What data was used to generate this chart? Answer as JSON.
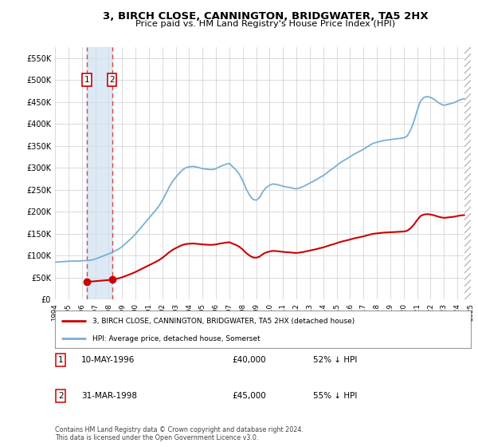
{
  "title": "3, BIRCH CLOSE, CANNINGTON, BRIDGWATER, TA5 2HX",
  "subtitle": "Price paid vs. HM Land Registry's House Price Index (HPI)",
  "hpi_x": [
    1994.0,
    1994.25,
    1994.5,
    1994.75,
    1995.0,
    1995.25,
    1995.5,
    1995.75,
    1996.0,
    1996.25,
    1996.5,
    1996.75,
    1997.0,
    1997.25,
    1997.5,
    1997.75,
    1998.0,
    1998.25,
    1998.5,
    1998.75,
    1999.0,
    1999.25,
    1999.5,
    1999.75,
    2000.0,
    2000.25,
    2000.5,
    2000.75,
    2001.0,
    2001.25,
    2001.5,
    2001.75,
    2002.0,
    2002.25,
    2002.5,
    2002.75,
    2003.0,
    2003.25,
    2003.5,
    2003.75,
    2004.0,
    2004.25,
    2004.5,
    2004.75,
    2005.0,
    2005.25,
    2005.5,
    2005.75,
    2006.0,
    2006.25,
    2006.5,
    2006.75,
    2007.0,
    2007.25,
    2007.5,
    2007.75,
    2008.0,
    2008.25,
    2008.5,
    2008.75,
    2009.0,
    2009.25,
    2009.5,
    2009.75,
    2010.0,
    2010.25,
    2010.5,
    2010.75,
    2011.0,
    2011.25,
    2011.5,
    2011.75,
    2012.0,
    2012.25,
    2012.5,
    2012.75,
    2013.0,
    2013.25,
    2013.5,
    2013.75,
    2014.0,
    2014.25,
    2014.5,
    2014.75,
    2015.0,
    2015.25,
    2015.5,
    2015.75,
    2016.0,
    2016.25,
    2016.5,
    2016.75,
    2017.0,
    2017.25,
    2017.5,
    2017.75,
    2018.0,
    2018.25,
    2018.5,
    2018.75,
    2019.0,
    2019.25,
    2019.5,
    2019.75,
    2020.0,
    2020.25,
    2020.5,
    2020.75,
    2021.0,
    2021.25,
    2021.5,
    2021.75,
    2022.0,
    2022.25,
    2022.5,
    2022.75,
    2023.0,
    2023.25,
    2023.5,
    2023.75,
    2024.0,
    2024.25,
    2024.5
  ],
  "hpi_y": [
    85000,
    85500,
    86000,
    86500,
    87000,
    87500,
    87500,
    87500,
    88000,
    88500,
    89000,
    90000,
    92000,
    95000,
    98000,
    101000,
    104000,
    107000,
    111000,
    115000,
    120000,
    127000,
    134000,
    141000,
    149000,
    158000,
    167000,
    176000,
    185000,
    194000,
    203000,
    213000,
    225000,
    240000,
    255000,
    268000,
    278000,
    287000,
    295000,
    300000,
    302000,
    303000,
    302000,
    300000,
    298000,
    297000,
    296000,
    296000,
    298000,
    302000,
    305000,
    308000,
    310000,
    302000,
    295000,
    285000,
    270000,
    252000,
    238000,
    228000,
    226000,
    232000,
    246000,
    255000,
    260000,
    263000,
    262000,
    260000,
    258000,
    256000,
    255000,
    253000,
    252000,
    254000,
    257000,
    261000,
    265000,
    269000,
    273000,
    278000,
    282000,
    288000,
    294000,
    299000,
    305000,
    311000,
    316000,
    320000,
    325000,
    330000,
    334000,
    338000,
    342000,
    347000,
    352000,
    356000,
    358000,
    360000,
    362000,
    363000,
    364000,
    365000,
    366000,
    367000,
    368000,
    372000,
    385000,
    405000,
    430000,
    452000,
    460000,
    462000,
    460000,
    456000,
    450000,
    445000,
    442000,
    444000,
    446000,
    448000,
    452000,
    455000,
    457000
  ],
  "sale_dates": [
    1996.36,
    1998.25
  ],
  "sale_prices": [
    40000,
    45000
  ],
  "sale_labels": [
    "1",
    "2"
  ],
  "hpi_color": "#7ab0d4",
  "sale_color": "#cc0000",
  "vline_color": "#dd4444",
  "shade_color": "#cfe0f0",
  "xlim": [
    1994.0,
    2025.0
  ],
  "ylim": [
    0,
    575000
  ],
  "yticks": [
    0,
    50000,
    100000,
    150000,
    200000,
    250000,
    300000,
    350000,
    400000,
    450000,
    500000,
    550000
  ],
  "xticks": [
    1994,
    1995,
    1996,
    1997,
    1998,
    1999,
    2000,
    2001,
    2002,
    2003,
    2004,
    2005,
    2006,
    2007,
    2008,
    2009,
    2010,
    2011,
    2012,
    2013,
    2014,
    2015,
    2016,
    2017,
    2018,
    2019,
    2020,
    2021,
    2022,
    2023,
    2024,
    2025
  ],
  "legend_label_sale": "3, BIRCH CLOSE, CANNINGTON, BRIDGWATER, TA5 2HX (detached house)",
  "legend_label_hpi": "HPI: Average price, detached house, Somerset",
  "table_rows": [
    {
      "num": "1",
      "date": "10-MAY-1996",
      "price": "£40,000",
      "note": "52% ↓ HPI"
    },
    {
      "num": "2",
      "date": "31-MAR-1998",
      "price": "£45,000",
      "note": "55% ↓ HPI"
    }
  ],
  "footnote": "Contains HM Land Registry data © Crown copyright and database right 2024.\nThis data is licensed under the Open Government Licence v3.0.",
  "bg_color": "#ffffff",
  "grid_color": "#cccccc"
}
